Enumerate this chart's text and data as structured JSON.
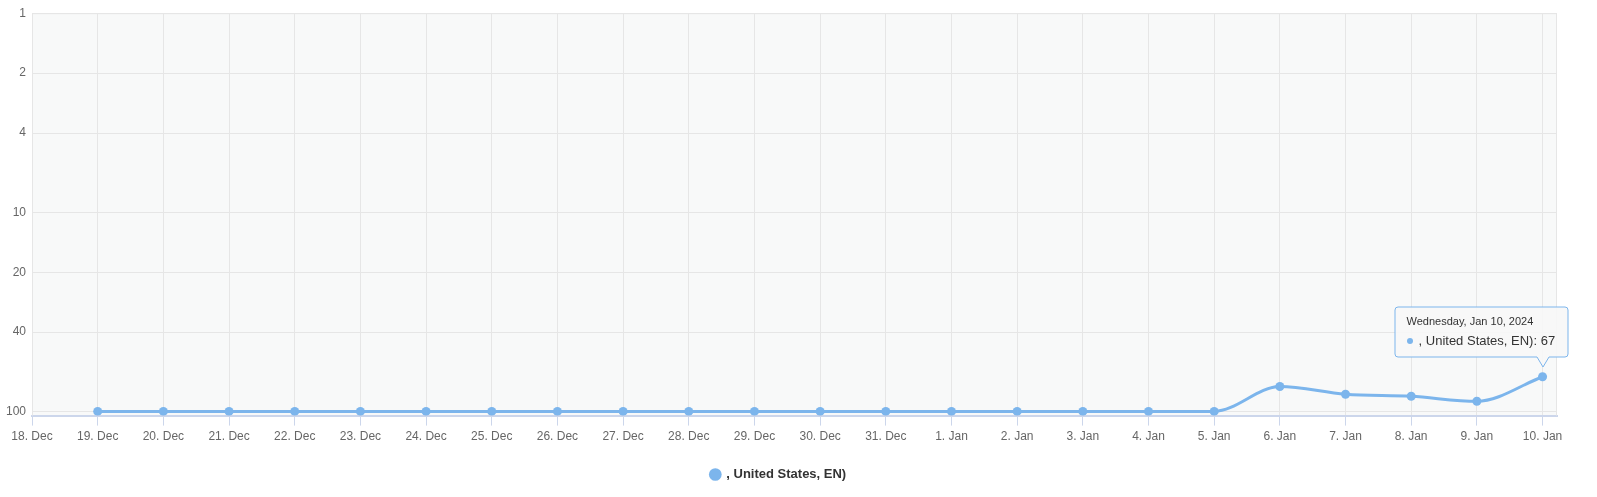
{
  "chart_data": {
    "type": "line",
    "categories": [
      "18. Dec",
      "19. Dec",
      "20. Dec",
      "21. Dec",
      "22. Dec",
      "23. Dec",
      "24. Dec",
      "25. Dec",
      "26. Dec",
      "27. Dec",
      "28. Dec",
      "29. Dec",
      "30. Dec",
      "31. Dec",
      "1. Jan",
      "2. Jan",
      "3. Jan",
      "4. Jan",
      "5. Jan",
      "6. Jan",
      "7. Jan",
      "8. Jan",
      "9. Jan",
      "10. Jan"
    ],
    "series": [
      {
        "name": ", United States, EN)",
        "color": "#7cb5ec",
        "values": [
          null,
          100,
          100,
          100,
          100,
          100,
          100,
          100,
          100,
          100,
          100,
          100,
          100,
          100,
          100,
          100,
          100,
          100,
          100,
          75,
          82,
          84,
          89,
          67
        ]
      }
    ],
    "ylim": [
      105,
      1
    ],
    "yticks": [
      1,
      2,
      4,
      10,
      20,
      40,
      100
    ],
    "log": "y",
    "grid": true,
    "marker": "circle",
    "legend": "bottom",
    "annotations": [
      "Wednesday, Jan 10, 2024",
      ", United States, EN): 67"
    ]
  }
}
